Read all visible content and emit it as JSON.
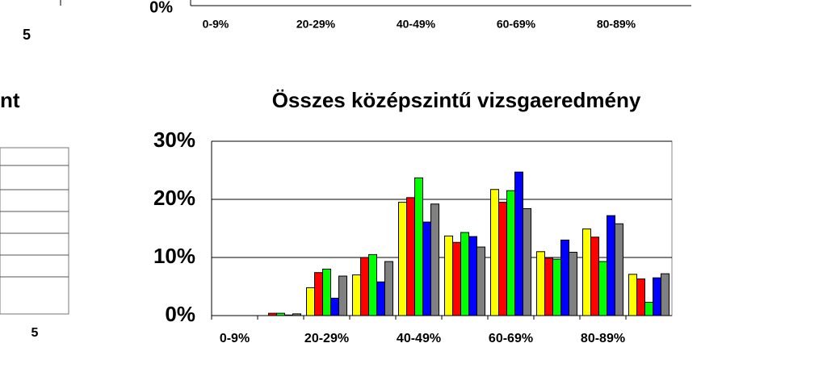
{
  "chart_data": [
    {
      "type": "bar",
      "title": "Összes középszintű vizsgaeredmény",
      "categories": [
        "0-9%",
        null,
        "20-29%",
        null,
        "40-49%",
        null,
        "60-69%",
        null,
        "80-89%",
        null
      ],
      "series": [
        {
          "color": "#ffff00",
          "values": [
            0,
            0,
            4.8,
            7,
            19.5,
            13.7,
            21.7,
            11,
            14.9,
            7.1
          ]
        },
        {
          "color": "#ff0000",
          "values": [
            0,
            0.4,
            7.4,
            10,
            20.3,
            12.6,
            19.5,
            9.9,
            13.5,
            6.3
          ]
        },
        {
          "color": "#00ff00",
          "values": [
            0,
            0.4,
            8,
            10.5,
            23.7,
            14.3,
            21.5,
            9.7,
            9.3,
            2.3
          ]
        },
        {
          "color": "#0000ff",
          "values": [
            0,
            0.1,
            3,
            5.8,
            16.1,
            13.6,
            24.7,
            13,
            17.2,
            6.5
          ]
        },
        {
          "color": "#808080",
          "values": [
            0,
            0.3,
            6.8,
            9.3,
            19.2,
            11.8,
            18.4,
            10.9,
            15.8,
            7.2
          ]
        }
      ],
      "ylim": [
        0,
        30
      ],
      "yticks": [
        {
          "value": 0,
          "label": "0%"
        },
        {
          "value": 10,
          "label": "10%"
        },
        {
          "value": 20,
          "label": "20%"
        },
        {
          "value": 30,
          "label": "30%"
        }
      ],
      "grid": true
    },
    {
      "type": "bar",
      "categories": [
        "0-9%",
        null,
        "20-29%",
        null,
        "40-49%",
        null,
        "60-69%",
        null,
        "80-89%",
        null
      ],
      "yticks": [
        {
          "value": 0,
          "label": "0%"
        }
      ]
    },
    {
      "type": "bar",
      "title": "nt",
      "categories": [
        "5"
      ]
    },
    {
      "type": "bar",
      "categories": [
        "5"
      ]
    }
  ]
}
